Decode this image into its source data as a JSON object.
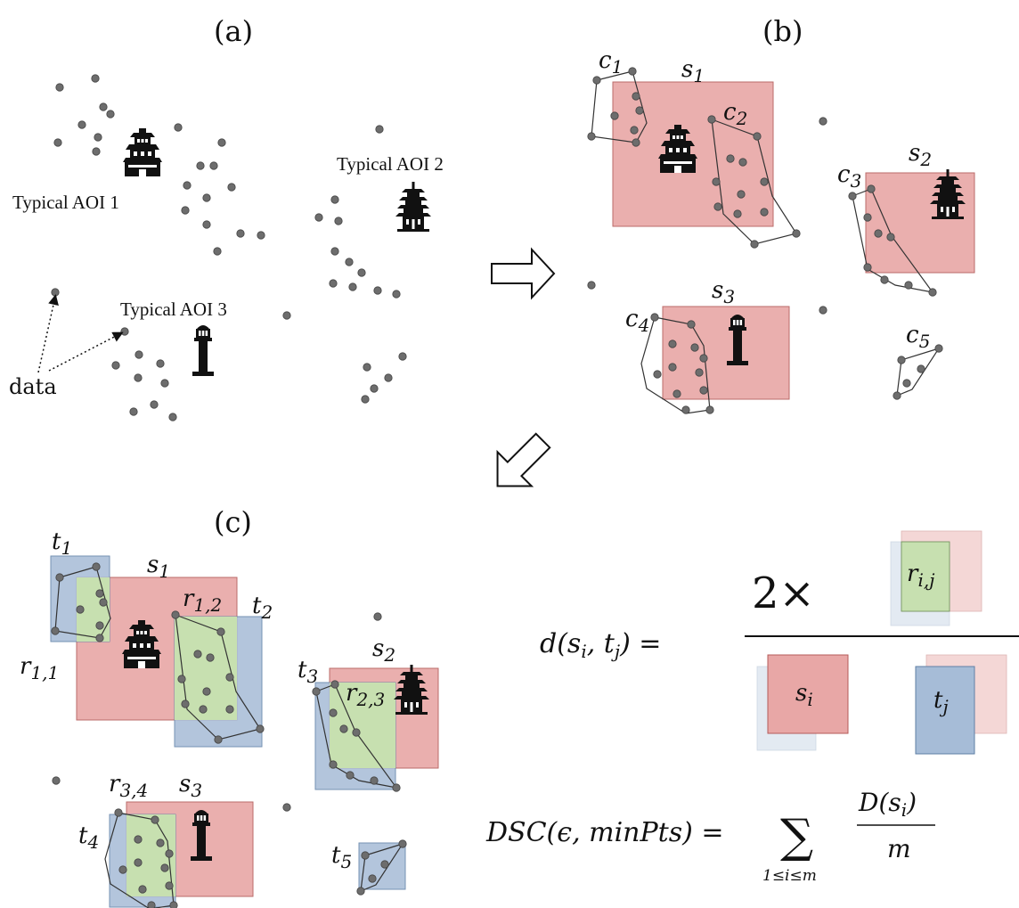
{
  "colors": {
    "red_box": "#e8a7a6",
    "red_stroke": "#b45b59",
    "blue_box": "#a6bcd7",
    "blue_stroke": "#5f7fa6",
    "green_box": "#c7e0b0",
    "point": "#6d6d6d",
    "hull": "#333333"
  },
  "panels": {
    "a": "(a)",
    "b": "(b)",
    "c": "(c)"
  },
  "labels": {
    "aoi1": "Typical AOI 1",
    "aoi2": "Typical AOI 2",
    "aoi3": "Typical AOI 3",
    "data": "data"
  },
  "sym": {
    "c": "c",
    "s": "s",
    "t": "t",
    "r": "r",
    "c1": "1",
    "c2": "2",
    "c3": "3",
    "c4": "4",
    "c5": "5",
    "s1": "1",
    "s2": "2",
    "s3": "3",
    "t1": "1",
    "t2": "2",
    "t3": "3",
    "t4": "4",
    "t5": "5",
    "r11": "1,1",
    "r12": "1,2",
    "r23": "2,3",
    "r34": "3,4"
  },
  "formula": {
    "d_lhs": "d(s",
    "d_i": "i",
    "d_comma": ", t",
    "d_j": "j",
    "d_close": ") =",
    "two_times": "2×",
    "r_ij": "r",
    "r_ij_sub": "i,j",
    "s_i": "s",
    "s_i_sub": "i",
    "t_j": "t",
    "t_j_sub": "j",
    "dsc_lhs": "DSC(ϵ, minPts) =",
    "sum": "∑",
    "sum_range": "1≤i≤m",
    "frac_num": "D(s",
    "frac_num_sub": "i",
    "frac_num_close": ")",
    "frac_den": "m"
  },
  "icons": [
    "castle-icon",
    "pagoda-icon",
    "lighthouse-icon"
  ]
}
